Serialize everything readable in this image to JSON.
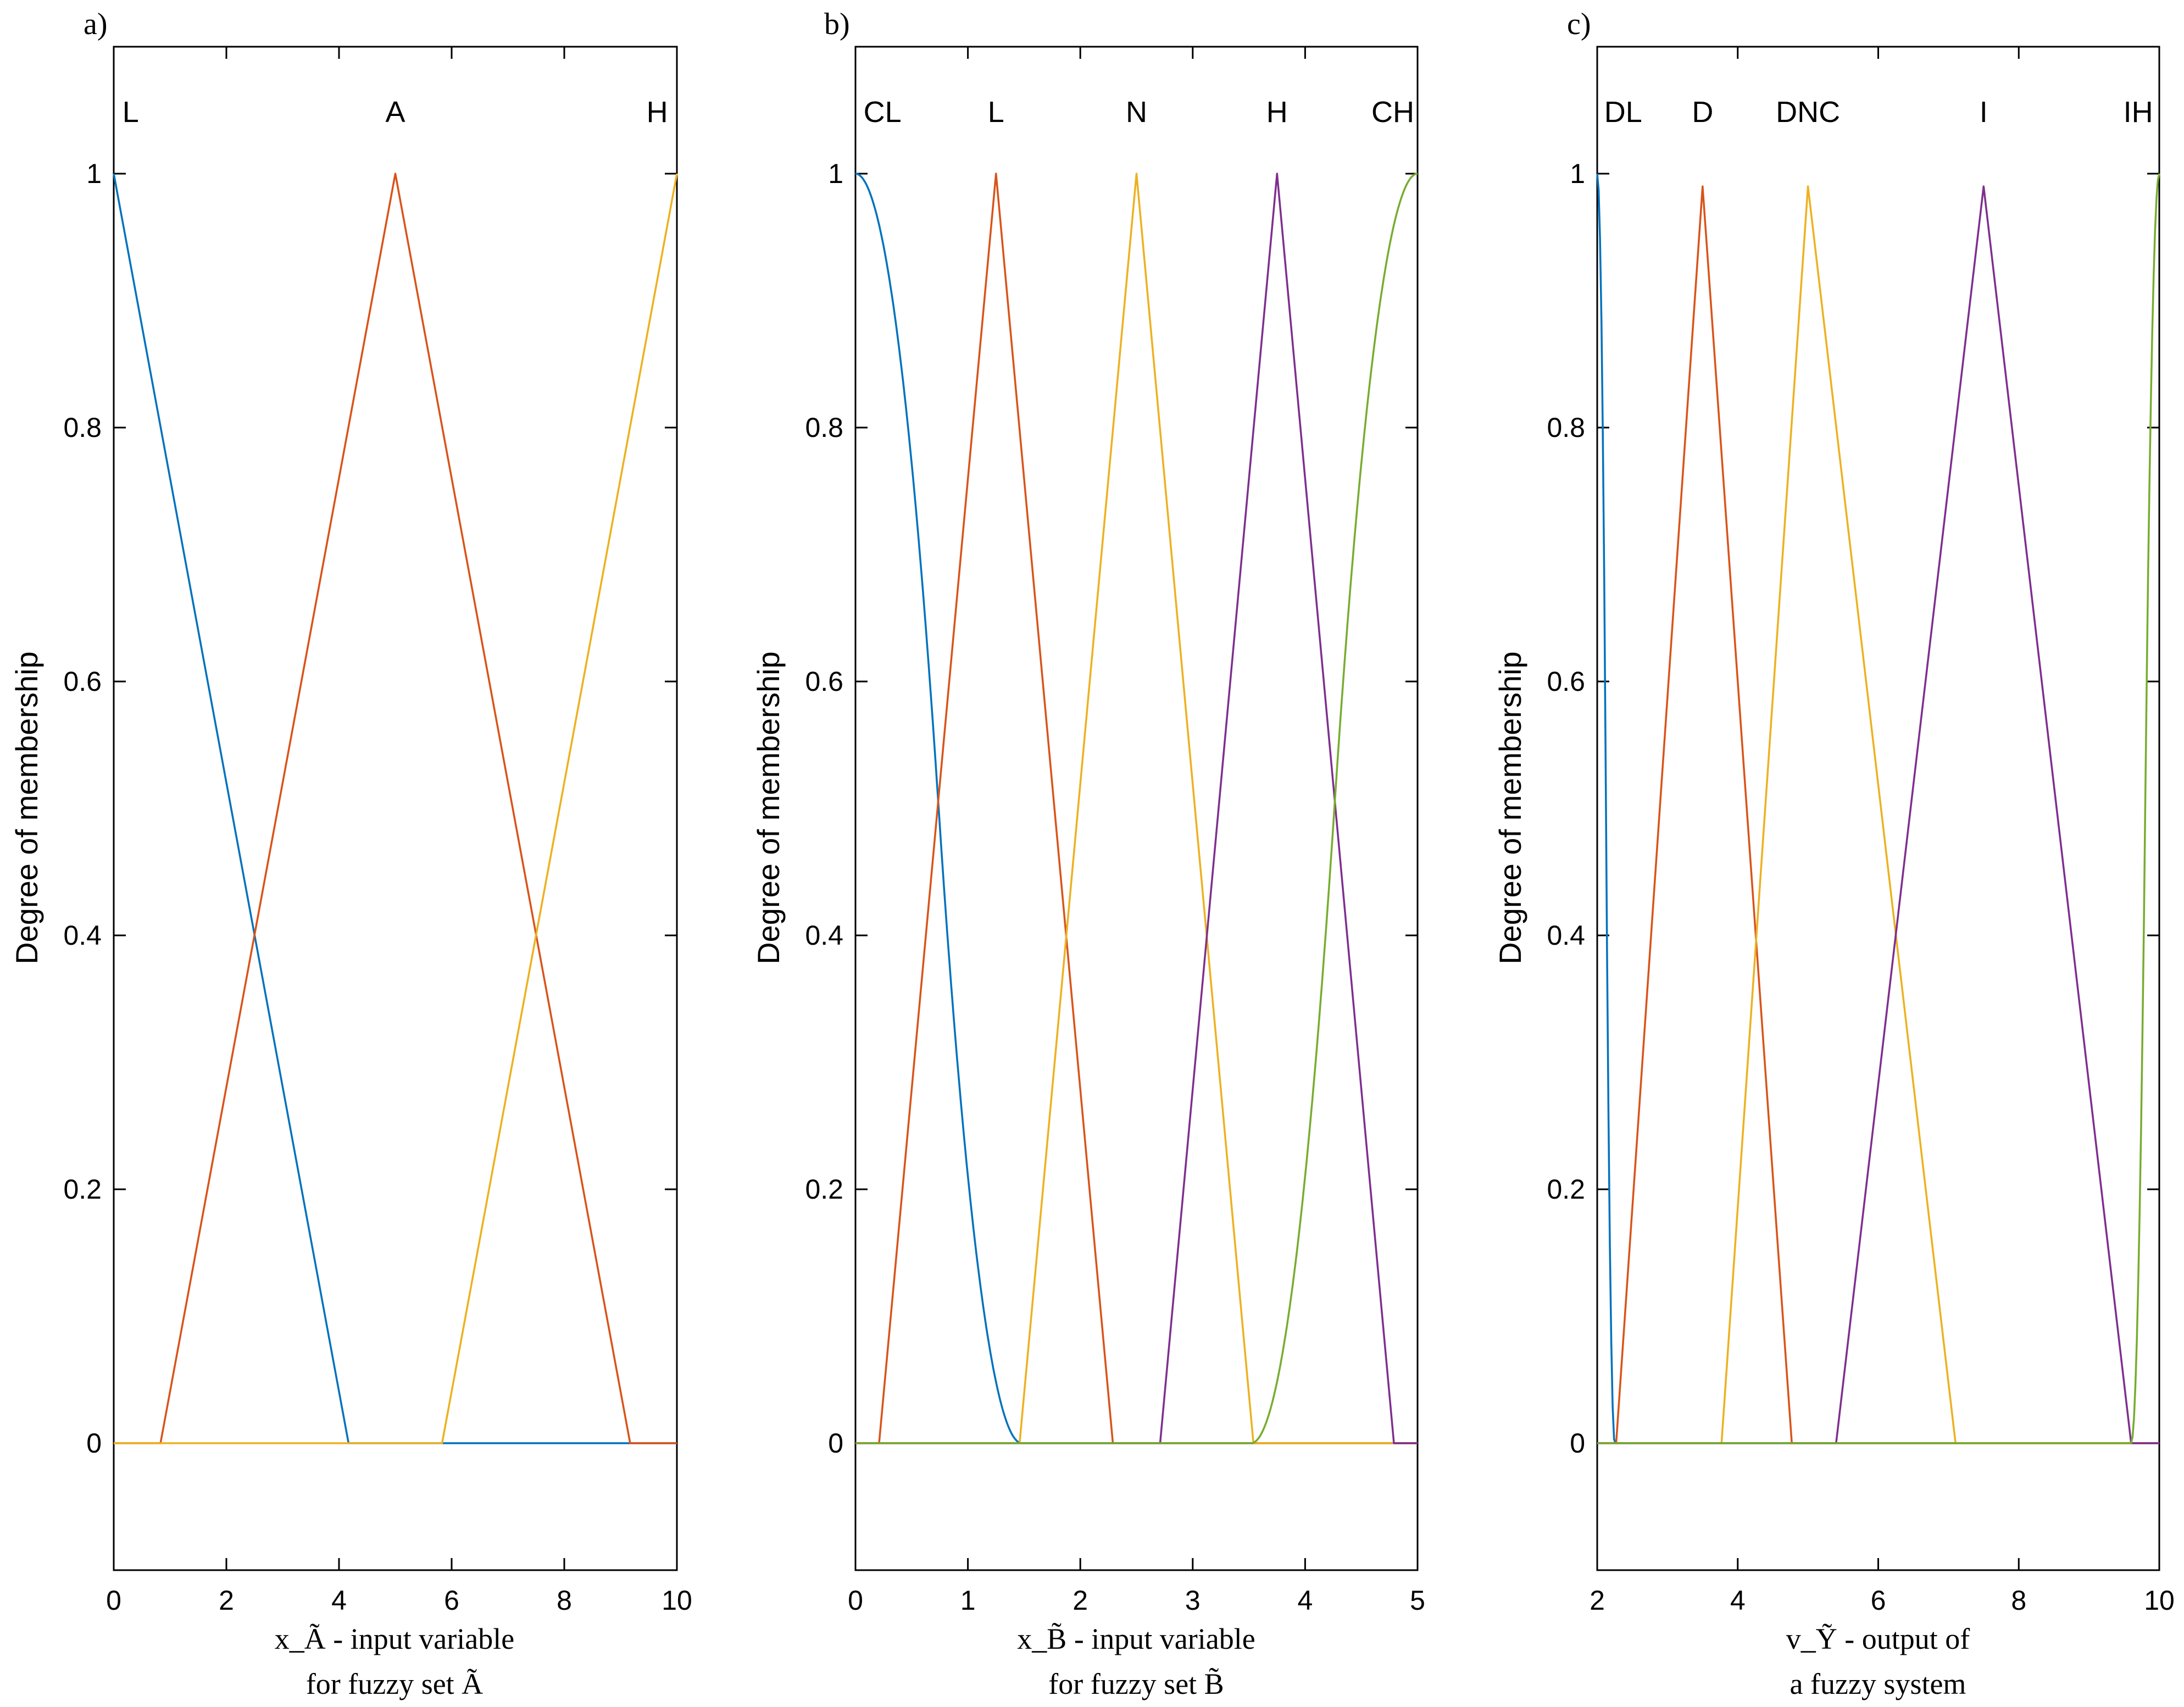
{
  "chart_data": [
    {
      "type": "line",
      "panel_label": "a)",
      "xlim": [
        0,
        10
      ],
      "ylim": [
        -0.1,
        1.1
      ],
      "xticks": [
        0,
        2,
        4,
        6,
        8,
        10
      ],
      "yticks": [
        0,
        0.2,
        0.4,
        0.6,
        0.8,
        1
      ],
      "ylabel": "Degree of membership",
      "xlabel_lines": [
        "x_Ã - input variable",
        "for fuzzy set Ã"
      ],
      "series": [
        {
          "name": "L",
          "color": "#0072BD",
          "label_x": 0.3,
          "shape": "poly",
          "points": [
            [
              0,
              1
            ],
            [
              4.17,
              0
            ],
            [
              10,
              0
            ]
          ]
        },
        {
          "name": "A",
          "color": "#D95319",
          "label_x": 5.0,
          "shape": "poly",
          "points": [
            [
              0,
              0
            ],
            [
              0.83,
              0
            ],
            [
              5.0,
              1
            ],
            [
              9.17,
              0
            ],
            [
              10,
              0
            ]
          ]
        },
        {
          "name": "H",
          "color": "#EDB120",
          "label_x": 9.65,
          "shape": "poly",
          "points": [
            [
              0,
              0
            ],
            [
              5.83,
              0
            ],
            [
              10,
              1
            ]
          ]
        }
      ]
    },
    {
      "type": "line",
      "panel_label": "b)",
      "xlim": [
        0,
        5
      ],
      "ylim": [
        -0.1,
        1.1
      ],
      "xticks": [
        0,
        1,
        2,
        3,
        4,
        5
      ],
      "yticks": [
        0,
        0.2,
        0.4,
        0.6,
        0.8,
        1
      ],
      "ylabel": "Degree of membership",
      "xlabel_lines": [
        "x_B̃ - input variable",
        "for fuzzy set B̃"
      ],
      "series": [
        {
          "name": "CL",
          "color": "#0072BD",
          "label_x": 0.24,
          "shape": "zmf",
          "params": [
            0,
            1.48
          ]
        },
        {
          "name": "L",
          "color": "#D95319",
          "label_x": 1.25,
          "shape": "poly",
          "points": [
            [
              0,
              0
            ],
            [
              0.21,
              0
            ],
            [
              1.25,
              1
            ],
            [
              2.29,
              0
            ],
            [
              5,
              0
            ]
          ]
        },
        {
          "name": "N",
          "color": "#EDB120",
          "label_x": 2.5,
          "shape": "poly",
          "points": [
            [
              0,
              0
            ],
            [
              1.46,
              0
            ],
            [
              2.5,
              1
            ],
            [
              3.54,
              0
            ],
            [
              5,
              0
            ]
          ]
        },
        {
          "name": "H",
          "color": "#7E2F8E",
          "label_x": 3.75,
          "shape": "poly",
          "points": [
            [
              0,
              0
            ],
            [
              2.71,
              0
            ],
            [
              3.75,
              1
            ],
            [
              4.79,
              0
            ],
            [
              5,
              0
            ]
          ]
        },
        {
          "name": "CH",
          "color": "#77AC30",
          "label_x": 4.78,
          "shape": "smf",
          "params": [
            3.52,
            5.0
          ]
        }
      ]
    },
    {
      "type": "line",
      "panel_label": "c)",
      "xlim": [
        2,
        10
      ],
      "ylim": [
        -0.1,
        1.1
      ],
      "xticks": [
        2,
        4,
        6,
        8,
        10
      ],
      "yticks": [
        0,
        0.2,
        0.4,
        0.6,
        0.8,
        1
      ],
      "ylabel": "Degree of membership",
      "xlabel_lines": [
        "v_Ỹ - output of",
        "a fuzzy system"
      ],
      "series": [
        {
          "name": "DL",
          "color": "#0072BD",
          "label_x": 2.37,
          "shape": "zmf",
          "params": [
            2.0,
            2.25
          ]
        },
        {
          "name": "D",
          "color": "#D95319",
          "label_x": 3.5,
          "shape": "poly",
          "points": [
            [
              2,
              0
            ],
            [
              2.27,
              0
            ],
            [
              3.5,
              0.99
            ],
            [
              4.77,
              0
            ],
            [
              10,
              0
            ]
          ]
        },
        {
          "name": "DNC",
          "color": "#EDB120",
          "label_x": 5.0,
          "shape": "poly",
          "points": [
            [
              2,
              0
            ],
            [
              3.77,
              0
            ],
            [
              5.0,
              0.99
            ],
            [
              7.1,
              0
            ],
            [
              10,
              0
            ]
          ]
        },
        {
          "name": "I",
          "color": "#7E2F8E",
          "label_x": 7.5,
          "shape": "poly",
          "points": [
            [
              2,
              0
            ],
            [
              5.4,
              0
            ],
            [
              7.5,
              0.99
            ],
            [
              9.6,
              0
            ],
            [
              10,
              0
            ]
          ]
        },
        {
          "name": "IH",
          "color": "#77AC30",
          "label_x": 9.7,
          "shape": "smf",
          "params": [
            9.6,
            10.0
          ]
        }
      ]
    }
  ]
}
